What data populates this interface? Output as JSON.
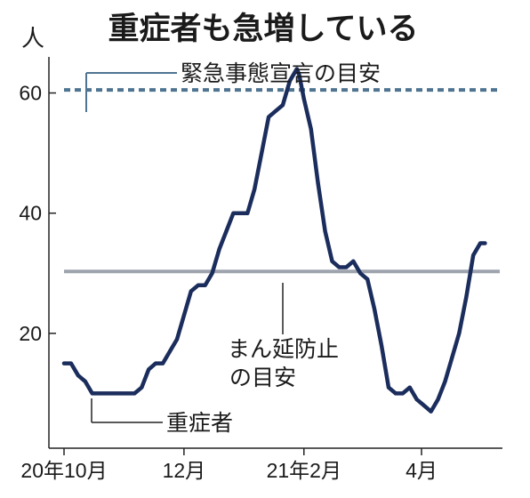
{
  "chart_data": {
    "type": "line",
    "title": "重症者も急増している",
    "unit_label": "人",
    "ylim": [
      0,
      66
    ],
    "yticks": [
      20,
      40,
      60
    ],
    "xlim": [
      0,
      183
    ],
    "xtick_positions": [
      0,
      51,
      102,
      152
    ],
    "xtick_labels": [
      "20年10月",
      "12月",
      "21年2月",
      "4月"
    ],
    "series": [
      {
        "name": "重症者",
        "color": "#1b2d5c",
        "x": [
          0,
          3,
          6,
          9,
          12,
          15,
          18,
          21,
          24,
          27,
          30,
          33,
          36,
          39,
          42,
          45,
          48,
          51,
          54,
          57,
          60,
          63,
          66,
          69,
          72,
          75,
          78,
          81,
          84,
          87,
          90,
          93,
          96,
          99,
          100,
          102,
          105,
          108,
          111,
          114,
          117,
          120,
          123,
          126,
          129,
          132,
          135,
          138,
          141,
          144,
          147,
          150,
          153,
          156,
          159,
          162,
          165,
          168,
          171,
          174,
          177,
          179
        ],
        "y": [
          15,
          15,
          13,
          12,
          10,
          10,
          10,
          10,
          10,
          10,
          10,
          11,
          14,
          15,
          15,
          17,
          19,
          23,
          27,
          28,
          28,
          30,
          34,
          37,
          40,
          40,
          40,
          44,
          50,
          56,
          57,
          58,
          62,
          64,
          63,
          59,
          54,
          45,
          37,
          32,
          31,
          31,
          32,
          30,
          29,
          24,
          18,
          11,
          10,
          10,
          11,
          9,
          8,
          7,
          9,
          12,
          16,
          20,
          26,
          33,
          35,
          35
        ]
      }
    ],
    "reference_lines": [
      {
        "label": "緊急事態宣言の目安",
        "value": 60.5,
        "color": "#4f7491",
        "style": "dashed"
      },
      {
        "label": "まん延防止の目安",
        "label_line2": "の目安",
        "label_line1": "まん延防止",
        "value": 30.3,
        "color": "#9ea3ad",
        "style": "solid"
      }
    ],
    "annotations": {
      "series_label": "重症者",
      "emergency_label": "緊急事態宣言の目安",
      "prevention_line1": "まん延防止",
      "prevention_line2": "の目安"
    }
  }
}
